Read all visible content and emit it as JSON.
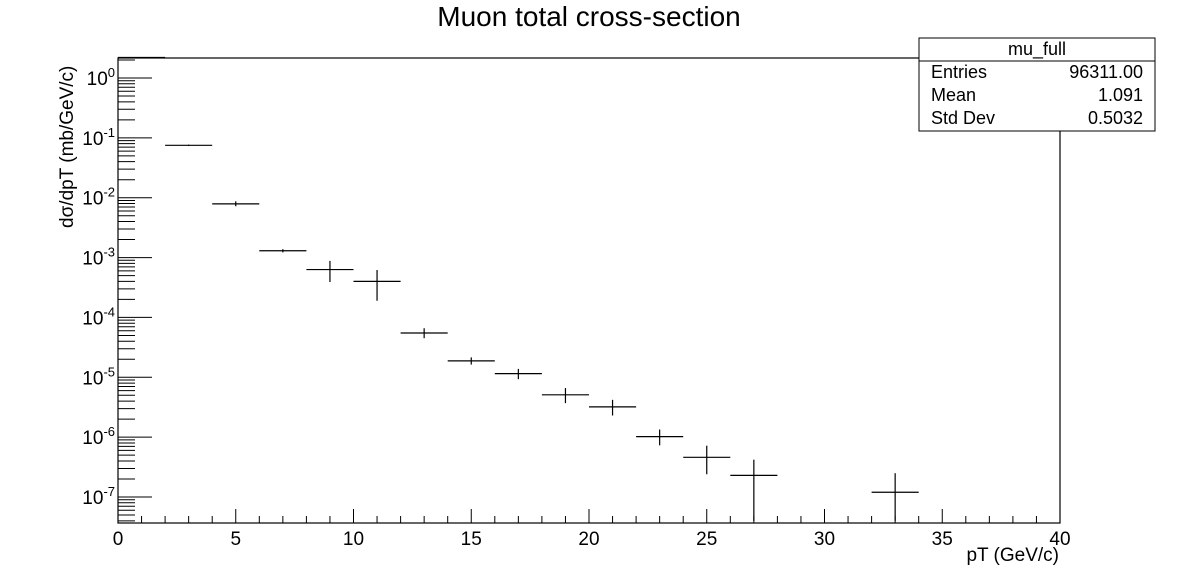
{
  "chart_data": {
    "type": "scatter",
    "title": "Muon total cross-section",
    "xlabel": "pT (GeV/c)",
    "ylabel": "dσ/dpT (mb/GeV/c)",
    "xlim": [
      0,
      40
    ],
    "ylim": [
      4e-08,
      2.4
    ],
    "yscale": "log",
    "x_ticks": [
      0,
      5,
      10,
      15,
      20,
      25,
      30,
      35,
      40
    ],
    "y_ticks": [
      {
        "base": "10",
        "exp": "0",
        "value": 1
      },
      {
        "base": "10",
        "exp": "-1",
        "value": 0.1
      },
      {
        "base": "10",
        "exp": "-2",
        "value": 0.01
      },
      {
        "base": "10",
        "exp": "-3",
        "value": 0.001
      },
      {
        "base": "10",
        "exp": "-4",
        "value": 0.0001
      },
      {
        "base": "10",
        "exp": "-5",
        "value": 1e-05
      },
      {
        "base": "10",
        "exp": "-6",
        "value": 1e-06
      },
      {
        "base": "10",
        "exp": "-7",
        "value": 1e-07
      }
    ],
    "series": [
      {
        "points": [
          {
            "x": 1,
            "xerr": 1,
            "y": 2.2,
            "ylo": 2.2,
            "yhi": 2.2
          },
          {
            "x": 3,
            "xerr": 1,
            "y": 0.075,
            "ylo": 0.073,
            "yhi": 0.077
          },
          {
            "x": 5,
            "xerr": 1,
            "y": 0.0079,
            "ylo": 0.0072,
            "yhi": 0.0087
          },
          {
            "x": 7,
            "xerr": 1,
            "y": 0.0013,
            "ylo": 0.00122,
            "yhi": 0.00138
          },
          {
            "x": 9,
            "xerr": 1,
            "y": 0.00063,
            "ylo": 0.00039,
            "yhi": 0.00088
          },
          {
            "x": 11,
            "xerr": 1,
            "y": 0.0004,
            "ylo": 0.00019,
            "yhi": 0.00062
          },
          {
            "x": 13,
            "xerr": 1,
            "y": 5.5e-05,
            "ylo": 4.5e-05,
            "yhi": 6.6e-05
          },
          {
            "x": 15,
            "xerr": 1,
            "y": 1.88e-05,
            "ylo": 1.63e-05,
            "yhi": 2.15e-05
          },
          {
            "x": 17,
            "xerr": 1,
            "y": 1.15e-05,
            "ylo": 9.3e-06,
            "yhi": 1.38e-05
          },
          {
            "x": 19,
            "xerr": 1,
            "y": 5.1e-06,
            "ylo": 3.7e-06,
            "yhi": 6.6e-06
          },
          {
            "x": 21,
            "xerr": 1,
            "y": 3.2e-06,
            "ylo": 2.3e-06,
            "yhi": 4.2e-06
          },
          {
            "x": 23,
            "xerr": 1,
            "y": 1.02e-06,
            "ylo": 7.3e-07,
            "yhi": 1.34e-06
          },
          {
            "x": 25,
            "xerr": 1,
            "y": 4.6e-07,
            "ylo": 2.4e-07,
            "yhi": 7.2e-07
          },
          {
            "x": 27,
            "xerr": 1,
            "y": 2.3e-07,
            "ylo": 4e-08,
            "yhi": 4.2e-07
          },
          {
            "x": 33,
            "xerr": 1,
            "y": 1.2e-07,
            "ylo": 4e-08,
            "yhi": 2.5e-07
          }
        ]
      }
    ]
  },
  "stats_box": {
    "name": "mu_full",
    "rows": [
      {
        "label": "Entries",
        "value": "96311.00"
      },
      {
        "label": "Mean",
        "value": "1.091"
      },
      {
        "label": "Std Dev",
        "value": "0.5032"
      }
    ]
  }
}
